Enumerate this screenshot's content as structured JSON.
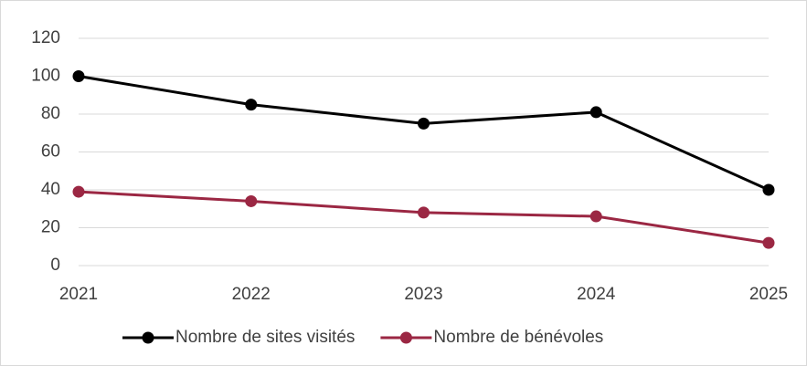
{
  "chart_data": {
    "type": "line",
    "categories": [
      "2021",
      "2022",
      "2023",
      "2024",
      "2025"
    ],
    "series": [
      {
        "name": "Nombre de sites visités",
        "color": "#000000",
        "values": [
          100,
          85,
          75,
          81,
          40
        ]
      },
      {
        "name": "Nombre de bénévoles",
        "color": "#9b2743",
        "values": [
          39,
          34,
          28,
          26,
          12
        ]
      }
    ],
    "ylim": [
      0,
      120
    ],
    "yticks": [
      0,
      20,
      40,
      60,
      80,
      100,
      120
    ],
    "grid": true,
    "legend": "bottom"
  }
}
